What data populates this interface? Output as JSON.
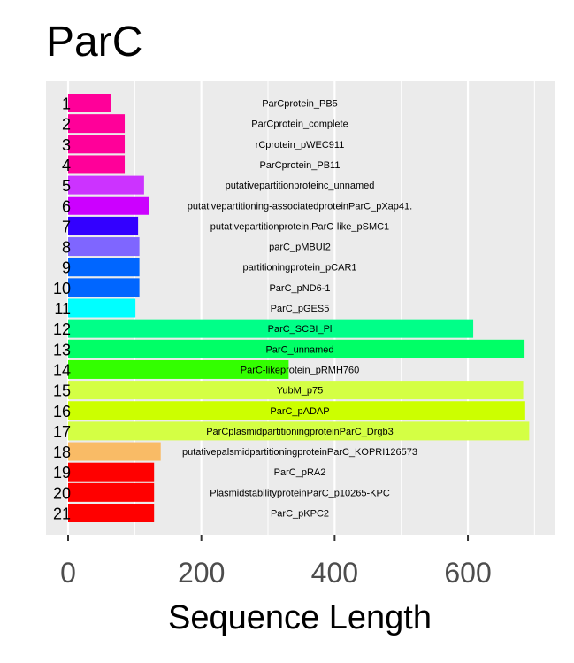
{
  "chart_data": {
    "type": "bar",
    "orientation": "horizontal",
    "title": "ParC",
    "xlabel": "Sequence Length",
    "ylabel": "",
    "xlim": [
      0,
      725
    ],
    "x_ticks": [
      0,
      200,
      400,
      600
    ],
    "x_tick_labels": [
      "0",
      "200",
      "400",
      "600"
    ],
    "grid": true,
    "panel_background": "#EBEBEB",
    "grid_color": "#FFFFFF",
    "legend": "none",
    "categories": [
      "1",
      "2",
      "3",
      "4",
      "5",
      "6",
      "7",
      "8",
      "9",
      "10",
      "11",
      "12",
      "13",
      "14",
      "15",
      "16",
      "17",
      "18",
      "19",
      "20",
      "21"
    ],
    "bar_labels": [
      "ParCprotein_PB5",
      "ParCprotein_complete",
      "rCprotein_pWEC911",
      "ParCprotein_PB11",
      "putativepartitionproteinc_unnamed",
      "putativepartitioning-associatedproteinParC_pXap41.",
      "putativepartitionprotein,ParC-like_pSMC1",
      "parC_pMBUI2",
      "partitioningprotein_pCAR1",
      "ParC_pND6-1",
      "ParC_pGES5",
      "ParC_SCBI_Pl",
      "ParC_unnamed",
      "ParC-likeprotein_pRMH760",
      "YubM_p75",
      "ParC_pADAP",
      "ParCplasmidpartitioningproteinParC_Drgb3",
      "putativepalsmidpartitioningproteinParC_KOPRI126573",
      "ParC_pRA2",
      "PlasmidstabilityproteinParC_p10265-KPC",
      "ParC_pKPC2"
    ],
    "values": [
      65,
      85,
      85,
      85,
      114,
      122,
      105,
      107,
      107,
      107,
      101,
      608,
      685,
      331,
      683,
      686,
      692,
      139,
      129,
      129,
      129
    ],
    "colors": [
      "#FF0099",
      "#FF0099",
      "#FF0099",
      "#FF0099",
      "#CC33FF",
      "#CC00FF",
      "#3300FF",
      "#7F66FF",
      "#0066FF",
      "#0066FF",
      "#00FFFF",
      "#00FF88",
      "#00FF66",
      "#33FF00",
      "#D4FF44",
      "#CCFF00",
      "#D4FF44",
      "#F9BB66",
      "#FF0000",
      "#FF0000",
      "#FF0000"
    ]
  }
}
